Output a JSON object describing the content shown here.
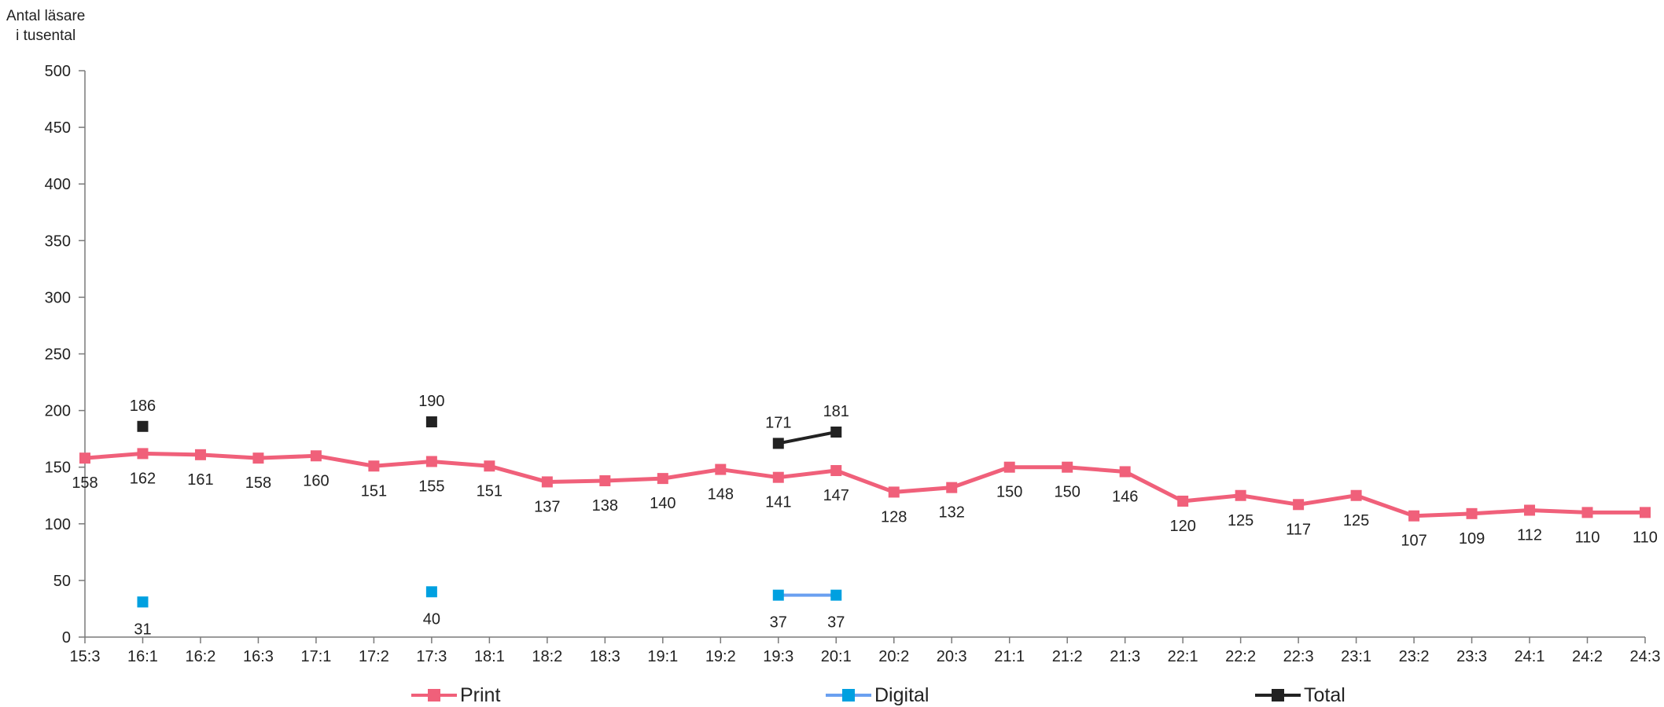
{
  "chart_data": {
    "type": "line",
    "ylabel": "Antal läsare\ni tusental",
    "ylabel_lines": [
      "Antal läsare",
      "i tusental"
    ],
    "ylim": [
      0,
      500
    ],
    "yticks": [
      0,
      50,
      100,
      150,
      200,
      250,
      300,
      350,
      400,
      450,
      500
    ],
    "categories": [
      "15:3",
      "16:1",
      "16:2",
      "16:3",
      "17:1",
      "17:2",
      "17:3",
      "18:1",
      "18:2",
      "18:3",
      "19:1",
      "19:2",
      "19:3",
      "20:1",
      "20:2",
      "20:3",
      "21:1",
      "21:2",
      "21:3",
      "22:1",
      "22:2",
      "22:3",
      "23:1",
      "23:2",
      "23:3",
      "24:1",
      "24:2",
      "24:3"
    ],
    "series": [
      {
        "name": "Print",
        "color": "#f0607a",
        "values": [
          158,
          162,
          161,
          158,
          160,
          151,
          155,
          151,
          137,
          138,
          140,
          148,
          141,
          147,
          128,
          132,
          150,
          150,
          146,
          120,
          125,
          117,
          125,
          107,
          109,
          112,
          110,
          110
        ]
      },
      {
        "name": "Digital",
        "color": "#00a0e0",
        "line_color": "#6aa0f0",
        "values": [
          null,
          31,
          null,
          null,
          null,
          null,
          40,
          null,
          null,
          null,
          null,
          null,
          37,
          37,
          null,
          null,
          null,
          null,
          null,
          null,
          null,
          null,
          null,
          null,
          null,
          null,
          null,
          null
        ]
      },
      {
        "name": "Total",
        "color": "#222222",
        "values": [
          null,
          186,
          null,
          null,
          null,
          null,
          190,
          null,
          null,
          null,
          null,
          null,
          171,
          181,
          null,
          null,
          null,
          null,
          null,
          null,
          null,
          null,
          null,
          null,
          null,
          null,
          null,
          null
        ]
      }
    ],
    "grid": false,
    "legend_position": "bottom"
  }
}
